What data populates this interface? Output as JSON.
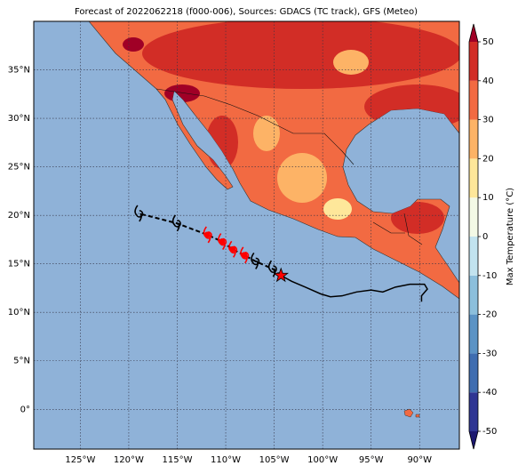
{
  "chart_data": {
    "type": "map",
    "title": "Forecast of 2022062218 (f000-006), Sources: GDACS (TC track), GFS (Meteo)",
    "xlim": [
      -129.8,
      -85.9
    ],
    "ylim": [
      -4.1,
      40
    ],
    "xticks": [
      {
        "value": -125,
        "label": "125°W"
      },
      {
        "value": -120,
        "label": "120°W"
      },
      {
        "value": -115,
        "label": "115°W"
      },
      {
        "value": -110,
        "label": "110°W"
      },
      {
        "value": -105,
        "label": "105°W"
      },
      {
        "value": -100,
        "label": "100°W"
      },
      {
        "value": -95,
        "label": "95°W"
      },
      {
        "value": -90,
        "label": "90°W"
      }
    ],
    "yticks": [
      {
        "value": 0,
        "label": "0°"
      },
      {
        "value": 5,
        "label": "5°N"
      },
      {
        "value": 10,
        "label": "10°N"
      },
      {
        "value": 15,
        "label": "15°N"
      },
      {
        "value": 20,
        "label": "20°N"
      },
      {
        "value": 25,
        "label": "25°N"
      },
      {
        "value": 30,
        "label": "30°N"
      },
      {
        "value": 35,
        "label": "35°N"
      }
    ],
    "grid": true,
    "ocean_color": "#8fb2d8",
    "land_color": "#f26a42",
    "track": {
      "lon": [
        -104.3,
        -103.2,
        -101.8,
        -100.2,
        -99.2,
        -98.0,
        -96.5,
        -95.0,
        -93.8,
        -92.5,
        -91.0,
        -89.5,
        -89.2,
        -89.8,
        -89.8
      ],
      "lat": [
        13.8,
        13.2,
        12.6,
        11.9,
        11.6,
        11.7,
        12.1,
        12.3,
        12.1,
        12.6,
        12.9,
        12.9,
        12.4,
        11.7,
        11.1
      ]
    },
    "forecast": {
      "lon": [
        -104.3,
        -105.2,
        -107.0,
        -108.1,
        -109.3,
        -110.4,
        -111.9,
        -115.1,
        -119.0
      ],
      "lat": [
        13.8,
        14.5,
        15.3,
        15.9,
        16.5,
        17.3,
        18.0,
        19.2,
        20.2
      ],
      "colors": [
        "#ff0000",
        "#000000",
        "#000000",
        "#ff0000",
        "#ff0000",
        "#ff0000",
        "#ff0000",
        "#000000",
        "#000000"
      ]
    },
    "colorbar": {
      "label": "Max Temperature (°C)",
      "ticks": [
        -50,
        -40,
        -30,
        -20,
        -10,
        0,
        10,
        20,
        30,
        40,
        50
      ],
      "colors": [
        "#2f3593",
        "#3f6db0",
        "#5b93c5",
        "#8cbfdc",
        "#c2e3ef",
        "#f3f9e6",
        "#fee79a",
        "#fdb366",
        "#f26a42",
        "#d22d26"
      ],
      "under_color": "#1c1870",
      "over_color": "#a00026"
    }
  }
}
